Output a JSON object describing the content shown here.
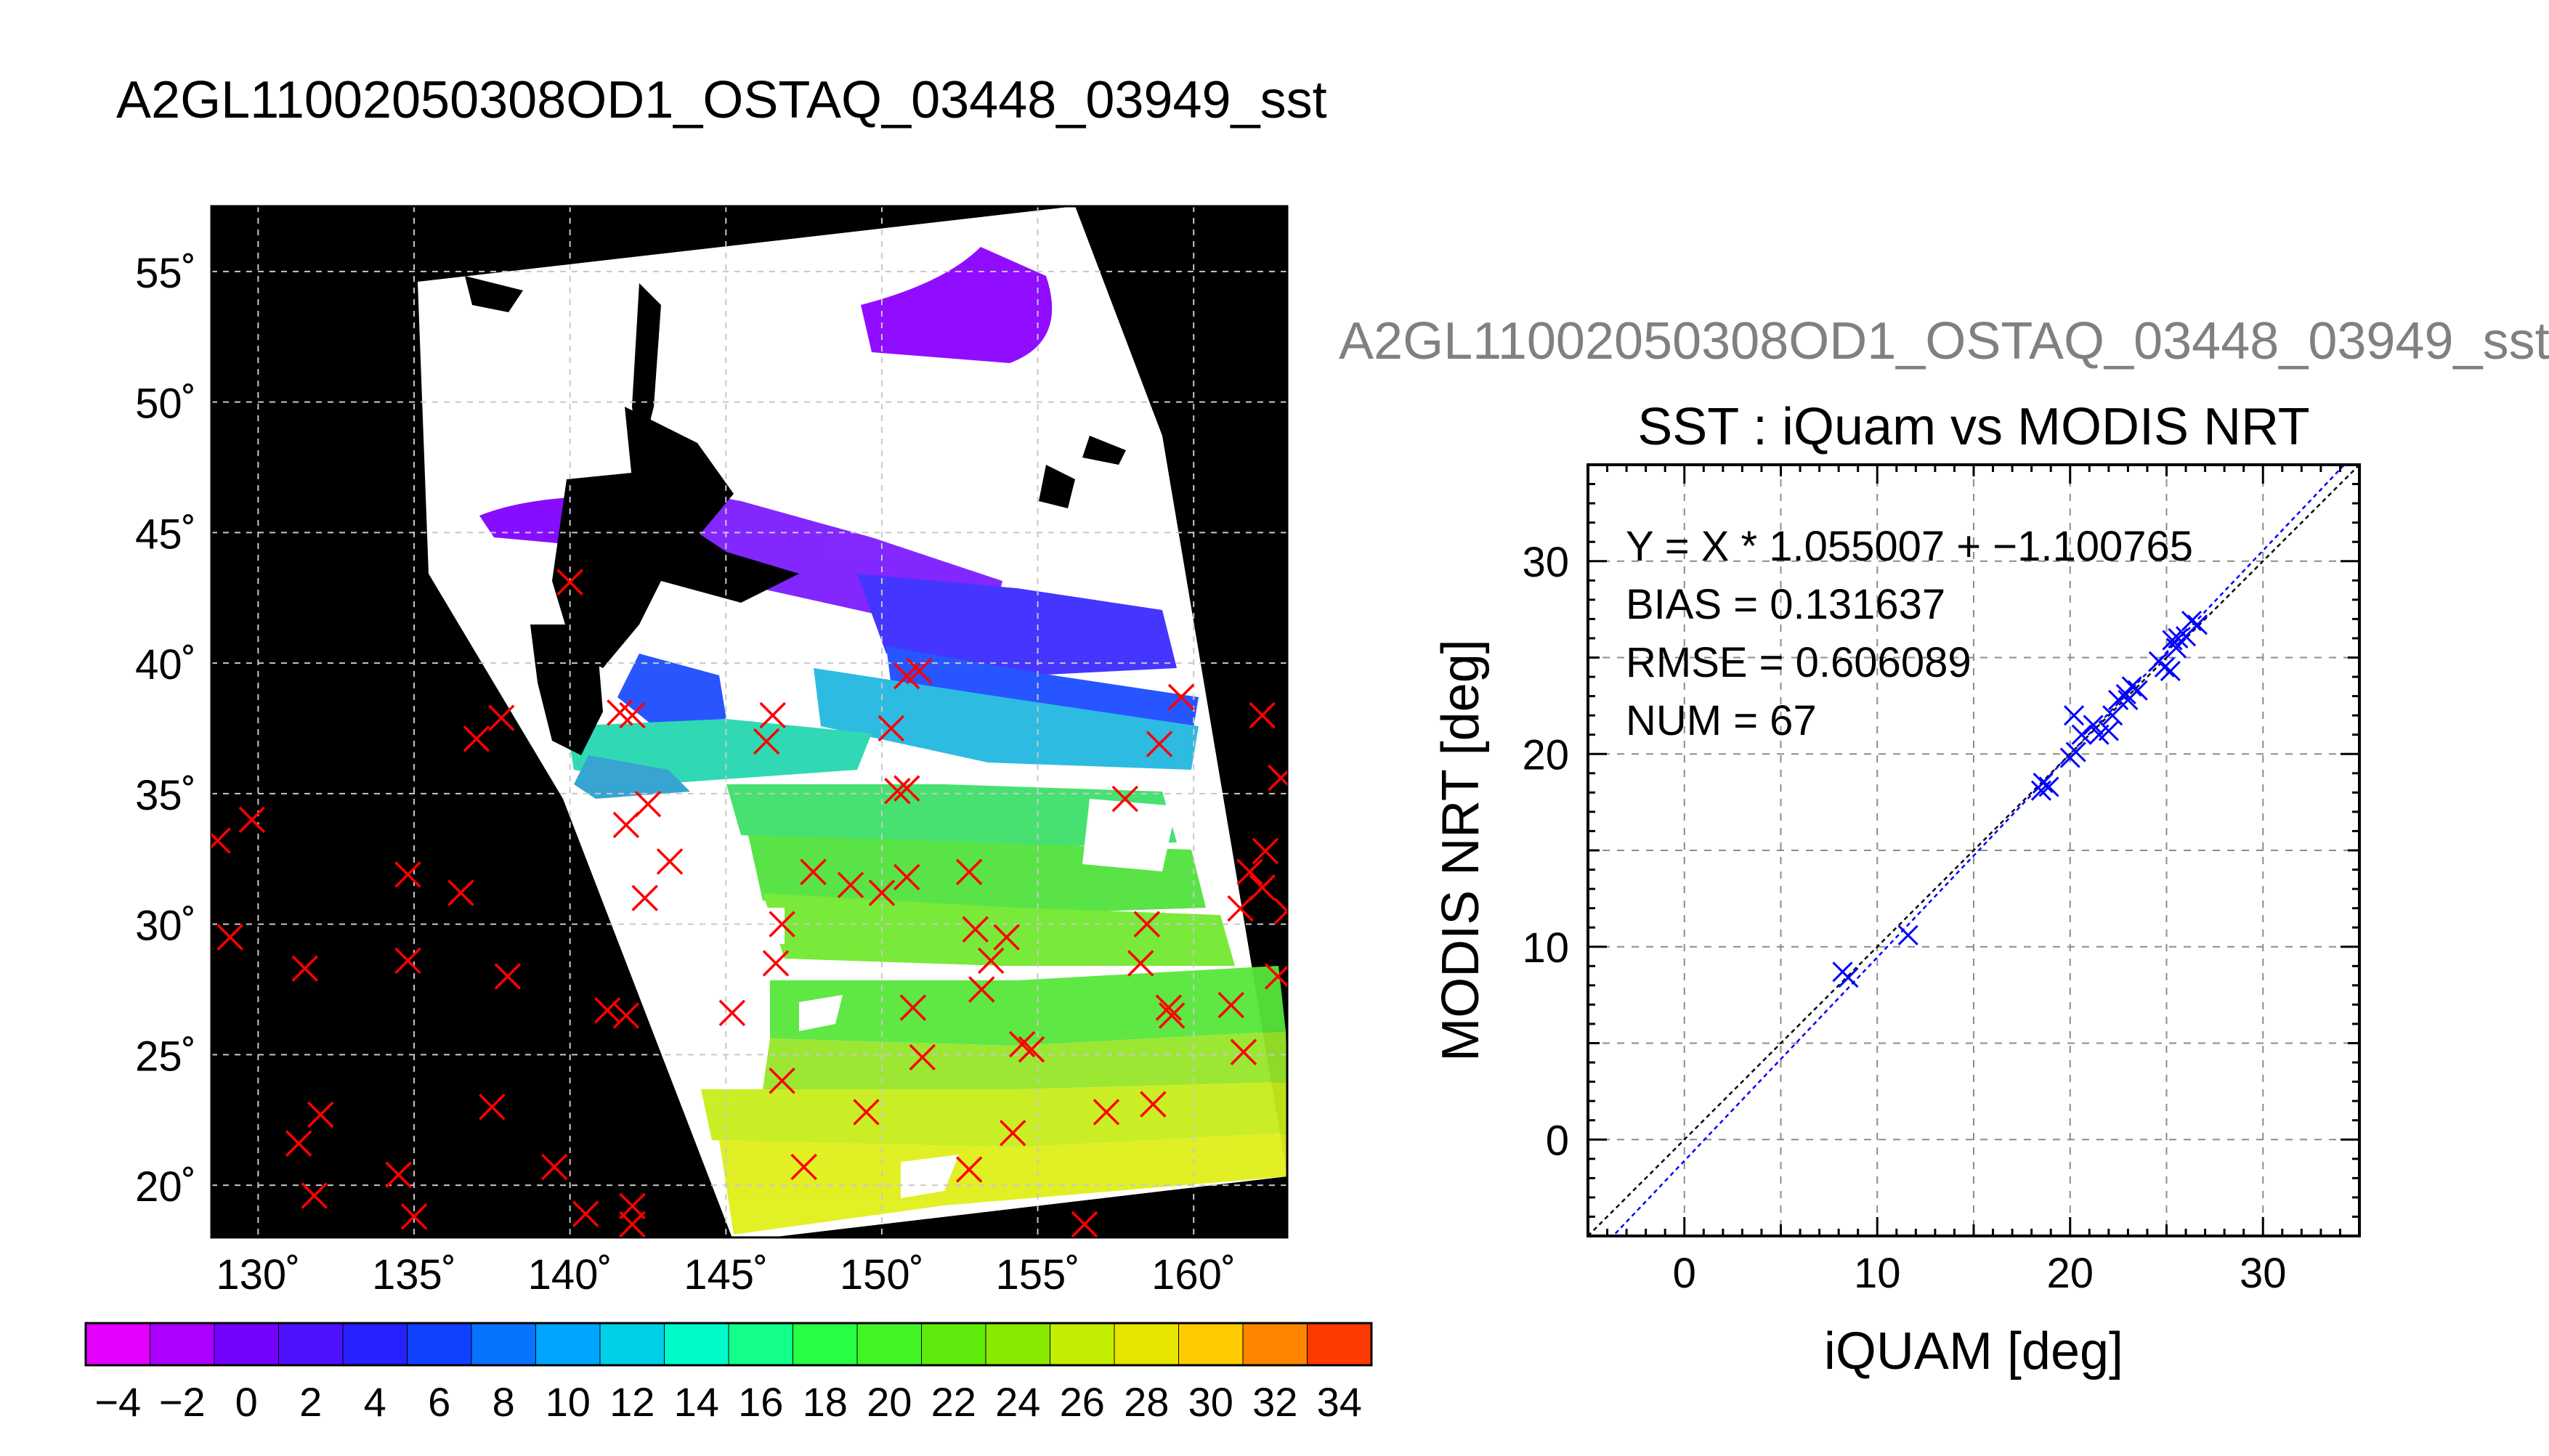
{
  "page_title": "A2GL11002050308OD1_OSTAQ_03448_03949_sst",
  "map": {
    "lat_ticks": [
      "55˚",
      "50˚",
      "45˚",
      "40˚",
      "35˚",
      "30˚",
      "25˚",
      "20˚"
    ],
    "lon_ticks": [
      "130˚",
      "135˚",
      "140˚",
      "145˚",
      "150˚",
      "155˚",
      "160˚"
    ],
    "colorbar_ticks": [
      "−4",
      "−2",
      "0",
      "2",
      "4",
      "6",
      "8",
      "10",
      "12",
      "14",
      "16",
      "18",
      "20",
      "22",
      "24",
      "26",
      "28",
      "30",
      "32",
      "34"
    ]
  },
  "chart_data": [
    {
      "type": "heatmap",
      "title": "",
      "xlabel": "",
      "ylabel": "",
      "xlim": [
        128.5,
        163
      ],
      "ylim": [
        18,
        57.5
      ],
      "x_ticks": [
        130,
        135,
        140,
        145,
        150,
        155,
        160
      ],
      "y_ticks": [
        20,
        25,
        30,
        35,
        40,
        45,
        50,
        55
      ],
      "colorbar": {
        "min": -5,
        "max": 35,
        "ticks": [
          -4,
          -2,
          0,
          2,
          4,
          6,
          8,
          10,
          12,
          14,
          16,
          18,
          20,
          22,
          24,
          26,
          28,
          30,
          32,
          34
        ]
      },
      "grid": true,
      "series": [
        {
          "points": [
            [
              129.8,
              34.0
            ],
            [
              128.7,
              33.2
            ],
            [
              129.1,
              29.5
            ],
            [
              131.5,
              28.3
            ],
            [
              132.0,
              22.7
            ],
            [
              131.3,
              21.6
            ],
            [
              131.8,
              19.6
            ],
            [
              134.5,
              20.4
            ],
            [
              135.0,
              18.8
            ],
            [
              134.8,
              31.9
            ],
            [
              134.8,
              28.6
            ],
            [
              137.0,
              37.1
            ],
            [
              137.8,
              37.9
            ],
            [
              136.5,
              31.2
            ],
            [
              137.5,
              23.0
            ],
            [
              138.0,
              28.0
            ],
            [
              139.5,
              20.7
            ],
            [
              140.5,
              18.9
            ],
            [
              142.0,
              19.2
            ],
            [
              142.0,
              18.5
            ],
            [
              141.2,
              26.7
            ],
            [
              141.8,
              26.5
            ],
            [
              140.0,
              43.1
            ],
            [
              141.6,
              38.1
            ],
            [
              142.0,
              38.0
            ],
            [
              141.8,
              33.8
            ],
            [
              142.5,
              34.6
            ],
            [
              143.2,
              32.4
            ],
            [
              142.4,
              31.0
            ],
            [
              145.2,
              26.6
            ],
            [
              146.5,
              38.0
            ],
            [
              146.3,
              37.0
            ],
            [
              146.8,
              30.0
            ],
            [
              146.6,
              28.5
            ],
            [
              146.8,
              24.0
            ],
            [
              147.8,
              32.0
            ],
            [
              147.5,
              20.7
            ],
            [
              149.0,
              31.5
            ],
            [
              150.0,
              31.2
            ],
            [
              150.3,
              37.5
            ],
            [
              150.8,
              39.5
            ],
            [
              151.2,
              39.7
            ],
            [
              150.5,
              35.1
            ],
            [
              150.8,
              35.2
            ],
            [
              150.8,
              31.8
            ],
            [
              149.5,
              22.8
            ],
            [
              151.0,
              26.8
            ],
            [
              151.3,
              24.9
            ],
            [
              152.8,
              32.0
            ],
            [
              153.0,
              29.8
            ],
            [
              153.2,
              27.5
            ],
            [
              153.5,
              28.6
            ],
            [
              154.0,
              29.5
            ],
            [
              154.5,
              25.4
            ],
            [
              154.8,
              25.2
            ],
            [
              154.2,
              22.0
            ],
            [
              152.8,
              20.6
            ],
            [
              156.5,
              18.5
            ],
            [
              157.8,
              34.8
            ],
            [
              157.2,
              22.8
            ],
            [
              158.3,
              28.5
            ],
            [
              158.5,
              30.0
            ],
            [
              158.7,
              23.1
            ],
            [
              158.9,
              36.9
            ],
            [
              159.3,
              26.5
            ],
            [
              159.2,
              26.8
            ],
            [
              159.6,
              38.7
            ],
            [
              161.5,
              30.6
            ],
            [
              161.8,
              32.0
            ],
            [
              161.2,
              26.9
            ],
            [
              161.6,
              25.1
            ],
            [
              162.2,
              38.0
            ],
            [
              162.8,
              35.6
            ],
            [
              162.3,
              32.8
            ],
            [
              162.2,
              31.4
            ],
            [
              163.0,
              30.5
            ],
            [
              162.7,
              28.0
            ]
          ]
        }
      ]
    },
    {
      "type": "scatter",
      "title": "SST : iQuam vs MODIS NRT",
      "superscript": "A2GL11002050308OD1_OSTAQ_03448_03949_sst",
      "xlabel": "iQUAM [deg]",
      "ylabel": "MODIS NRT [deg]",
      "xlim": [
        -5,
        35
      ],
      "ylim": [
        -5,
        35
      ],
      "x_ticks": [
        0,
        10,
        20,
        30
      ],
      "y_ticks": [
        0,
        10,
        20,
        30
      ],
      "grid": true,
      "annotations": [
        "Y = X * 1.055007 + −1.100765",
        "BIAS = 0.131637",
        "RMSE = 0.606089",
        "NUM = 67"
      ],
      "fit": {
        "slope": 1.055007,
        "intercept": -1.100765
      },
      "series": [
        {
          "points": [
            [
              8.5,
              8.4
            ],
            [
              8.2,
              8.7
            ],
            [
              11.6,
              10.6
            ],
            [
              18.6,
              18.5
            ],
            [
              18.9,
              18.3
            ],
            [
              18.5,
              18.1
            ],
            [
              20.0,
              19.8
            ],
            [
              20.3,
              20.1
            ],
            [
              20.2,
              22.0
            ],
            [
              20.6,
              21.0
            ],
            [
              21.2,
              21.5
            ],
            [
              21.5,
              21.0
            ],
            [
              22.0,
              21.2
            ],
            [
              22.2,
              22.0
            ],
            [
              22.5,
              22.8
            ],
            [
              22.9,
              23.1
            ],
            [
              23.2,
              23.5
            ],
            [
              23.0,
              22.8
            ],
            [
              23.5,
              23.3
            ],
            [
              24.6,
              24.8
            ],
            [
              24.9,
              24.5
            ],
            [
              25.2,
              24.3
            ],
            [
              25.3,
              25.9
            ],
            [
              25.6,
              26.0
            ],
            [
              25.5,
              25.5
            ],
            [
              26.0,
              26.1
            ],
            [
              26.3,
              26.9
            ],
            [
              26.6,
              26.7
            ]
          ]
        }
      ]
    }
  ]
}
